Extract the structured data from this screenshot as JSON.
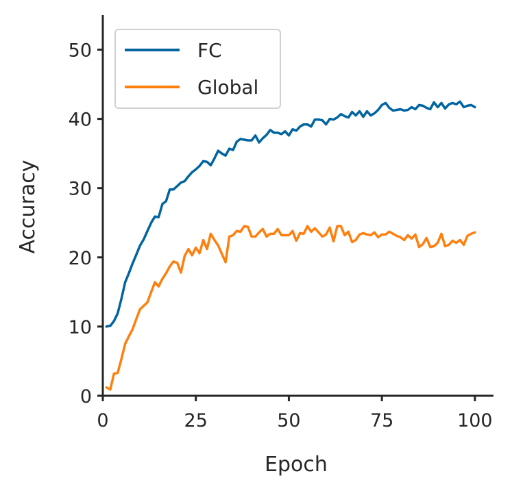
{
  "chart_data": {
    "type": "line",
    "title": "",
    "xlabel": "Epoch",
    "ylabel": "Accuracy",
    "xlim": [
      0,
      105
    ],
    "ylim": [
      0,
      55
    ],
    "xticks": [
      0,
      25,
      50,
      75,
      100
    ],
    "yticks": [
      0,
      10,
      20,
      30,
      40,
      50
    ],
    "xtick_labels": [
      "0",
      "25",
      "50",
      "75",
      "100"
    ],
    "ytick_labels": [
      "0",
      "10",
      "20",
      "30",
      "40",
      "50"
    ],
    "grid": false,
    "legend_position": "top-left",
    "x": [
      1,
      2,
      3,
      4,
      5,
      6,
      7,
      8,
      9,
      10,
      11,
      12,
      13,
      14,
      15,
      16,
      17,
      18,
      19,
      20,
      21,
      22,
      23,
      24,
      25,
      26,
      27,
      28,
      29,
      30,
      31,
      32,
      33,
      34,
      35,
      36,
      37,
      38,
      39,
      40,
      41,
      42,
      43,
      44,
      45,
      46,
      47,
      48,
      49,
      50,
      51,
      52,
      53,
      54,
      55,
      56,
      57,
      58,
      59,
      60,
      61,
      62,
      63,
      64,
      65,
      66,
      67,
      68,
      69,
      70,
      71,
      72,
      73,
      74,
      75,
      76,
      77,
      78,
      79,
      80,
      81,
      82,
      83,
      84,
      85,
      86,
      87,
      88,
      89,
      90,
      91,
      92,
      93,
      94,
      95,
      96,
      97,
      98,
      99,
      100
    ],
    "series": [
      {
        "name": "FC",
        "color": "#0064a0",
        "values": [
          10.0,
          10.1,
          10.8,
          11.9,
          14.0,
          16.4,
          17.7,
          19.1,
          20.4,
          21.7,
          22.6,
          23.8,
          25.0,
          25.9,
          25.8,
          27.7,
          28.1,
          29.8,
          29.8,
          30.3,
          30.8,
          31.0,
          31.7,
          32.3,
          32.7,
          33.2,
          33.9,
          33.8,
          33.3,
          34.3,
          35.4,
          35.0,
          34.7,
          35.7,
          35.5,
          36.7,
          37.1,
          37.0,
          36.9,
          36.9,
          37.6,
          36.6,
          37.2,
          37.7,
          38.4,
          38.0,
          38.0,
          37.8,
          38.2,
          37.6,
          38.5,
          38.3,
          38.9,
          39.2,
          39.2,
          38.9,
          39.9,
          39.9,
          39.8,
          39.2,
          40.0,
          39.9,
          40.2,
          40.7,
          40.4,
          40.2,
          41.0,
          40.5,
          41.1,
          40.3,
          41.1,
          40.5,
          40.8,
          41.3,
          42.0,
          42.3,
          41.6,
          41.2,
          41.3,
          41.4,
          41.2,
          41.3,
          41.7,
          41.4,
          42.0,
          41.9,
          41.6,
          41.4,
          42.4,
          41.7,
          42.3,
          41.5,
          42.1,
          42.3,
          42.1,
          42.5,
          41.7,
          41.9,
          42.0,
          41.7
        ]
      },
      {
        "name": "Global",
        "color": "#ff7f0e",
        "values": [
          1.2,
          0.9,
          3.2,
          3.3,
          5.3,
          7.5,
          8.6,
          9.6,
          11.1,
          12.5,
          13.0,
          13.5,
          15.0,
          16.4,
          15.8,
          16.9,
          17.7,
          18.7,
          19.4,
          19.2,
          17.8,
          20.2,
          21.2,
          20.3,
          21.4,
          20.6,
          22.5,
          21.2,
          23.4,
          22.5,
          21.7,
          20.5,
          19.3,
          23.0,
          23.2,
          23.8,
          23.7,
          24.5,
          24.4,
          23.0,
          23.0,
          23.6,
          24.1,
          23.0,
          23.4,
          23.4,
          24.1,
          23.2,
          23.2,
          23.2,
          23.8,
          22.4,
          23.5,
          23.4,
          24.5,
          23.7,
          24.2,
          23.6,
          23.0,
          23.3,
          24.3,
          22.3,
          24.5,
          24.5,
          23.2,
          23.7,
          22.2,
          22.5,
          23.3,
          23.5,
          23.3,
          23.2,
          23.6,
          22.9,
          23.3,
          23.3,
          23.7,
          23.4,
          23.1,
          22.9,
          22.5,
          23.2,
          22.7,
          23.3,
          21.5,
          21.9,
          22.8,
          21.5,
          21.6,
          22.1,
          23.4,
          21.6,
          21.8,
          22.4,
          22.1,
          22.5,
          21.8,
          23.1,
          23.4,
          23.6
        ]
      }
    ]
  }
}
